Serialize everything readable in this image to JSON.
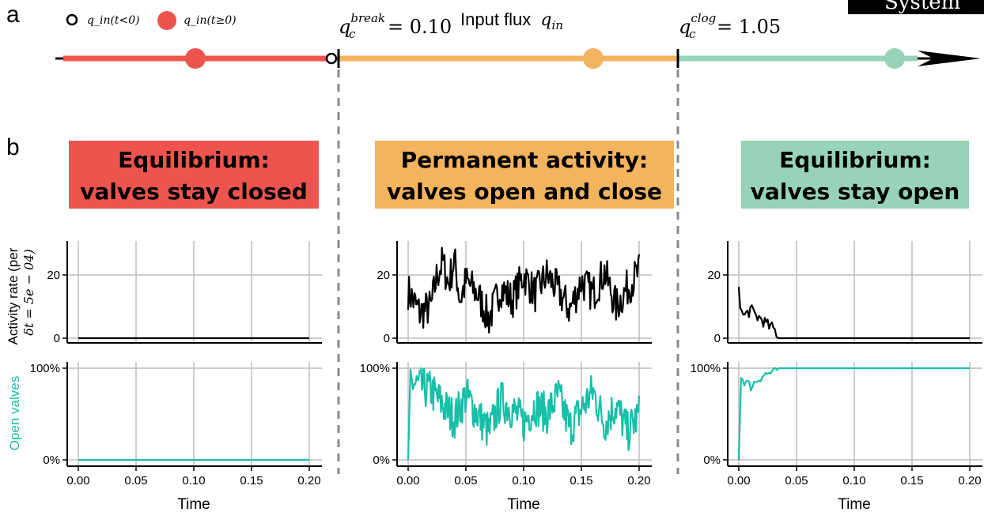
{
  "panel_labels": {
    "a": "a",
    "b": "b"
  },
  "system_tag": "System",
  "legend": {
    "negative": "q_in(t<0)",
    "nonnegative": "q_in(t≥0)"
  },
  "flux_axis": {
    "label_text": "Input flux",
    "label_var": "q",
    "label_sub": "in",
    "break_var": "q",
    "break_sub": "c",
    "break_sup": "break",
    "break_value": "= 0.10",
    "clog_var": "q",
    "clog_sub": "c",
    "clog_sup": "clog",
    "clog_value": "= 1.05"
  },
  "regimes": [
    {
      "line1": "Equilibrium:",
      "line2": "valves stay closed",
      "color": "#ee544e"
    },
    {
      "line1": "Permanent activity:",
      "line2": "valves open and close",
      "color": "#f4b35f"
    },
    {
      "line1": "Equilibrium:",
      "line2": "valves stay open",
      "color": "#97d3b9"
    }
  ],
  "colors": {
    "red": "#ee544e",
    "orange": "#f4b35f",
    "green": "#97d3b9",
    "teal": "#17bfa8",
    "dash": "#8a8a8a"
  },
  "axis_text": {
    "ylabel_activity_line1": "Activity rate (per",
    "ylabel_activity_line2": "δt = 5e − 04)",
    "ylabel_open": "Open valves",
    "xlabel": "Time",
    "xticks": [
      "0.00",
      "0.05",
      "0.10",
      "0.15",
      "0.20"
    ],
    "activity_yticks": [
      "0",
      "20"
    ],
    "open_yticks": [
      "0%",
      "100%"
    ]
  },
  "chart_data": [
    {
      "type": "line",
      "title": "Equilibrium: valves stay closed",
      "xlabel": "Time",
      "ylabel": "Activity rate (per δt = 5e − 04)",
      "xlim": [
        0,
        0.2
      ],
      "ylim": [
        0,
        30
      ],
      "series": [
        {
          "values_x": [
            0,
            0.2
          ],
          "values_y": [
            0,
            0
          ]
        }
      ],
      "secondary": {
        "ylabel": "Open valves",
        "ylim": [
          0,
          1
        ],
        "series": [
          {
            "values_x": [
              0,
              0.2
            ],
            "values_y": [
              0,
              0
            ]
          }
        ]
      }
    },
    {
      "type": "line",
      "title": "Permanent activity: valves open and close",
      "xlabel": "Time",
      "ylabel": "Activity rate (per δt = 5e − 04)",
      "xlim": [
        0,
        0.2
      ],
      "ylim": [
        0,
        30
      ],
      "series": [
        {
          "values_x": [
            0,
            0.01,
            0.02,
            0.025,
            0.03,
            0.035,
            0.04,
            0.045,
            0.05,
            0.06,
            0.07,
            0.08,
            0.09,
            0.1,
            0.11,
            0.12,
            0.13,
            0.14,
            0.15,
            0.16,
            0.17,
            0.18,
            0.19,
            0.2
          ],
          "values_y": [
            15,
            8,
            10,
            20,
            24,
            17,
            25,
            12,
            18,
            14,
            6,
            16,
            12,
            20,
            14,
            20,
            15,
            9,
            18,
            14,
            21,
            10,
            16,
            21
          ]
        }
      ],
      "secondary": {
        "ylabel": "Open valves",
        "ylim": [
          0,
          1
        ],
        "series": [
          {
            "values_x": [
              0,
              0.002,
              0.01,
              0.02,
              0.03,
              0.04,
              0.05,
              0.06,
              0.07,
              0.08,
              0.09,
              0.1,
              0.11,
              0.12,
              0.13,
              0.14,
              0.15,
              0.16,
              0.17,
              0.18,
              0.19,
              0.2
            ],
            "values_y": [
              0,
              0.85,
              0.8,
              0.75,
              0.6,
              0.45,
              0.7,
              0.5,
              0.3,
              0.65,
              0.55,
              0.4,
              0.6,
              0.5,
              0.7,
              0.35,
              0.55,
              0.75,
              0.4,
              0.6,
              0.3,
              0.5
            ]
          }
        ]
      }
    },
    {
      "type": "line",
      "title": "Equilibrium: valves stay open",
      "xlabel": "Time",
      "ylabel": "Activity rate (per δt = 5e − 04)",
      "xlim": [
        0,
        0.2
      ],
      "ylim": [
        0,
        30
      ],
      "series": [
        {
          "values_x": [
            0,
            0.002,
            0.005,
            0.01,
            0.015,
            0.02,
            0.025,
            0.03,
            0.034,
            0.035,
            0.2
          ],
          "values_y": [
            17,
            8,
            7,
            9,
            7,
            6,
            4,
            3,
            1,
            0,
            0
          ]
        }
      ],
      "secondary": {
        "ylabel": "Open valves",
        "ylim": [
          0,
          1
        ],
        "series": [
          {
            "values_x": [
              0,
              0.002,
              0.01,
              0.02,
              0.03,
              0.035,
              0.2
            ],
            "values_y": [
              0,
              0.9,
              0.8,
              0.92,
              0.96,
              1,
              1
            ]
          }
        ]
      }
    }
  ]
}
